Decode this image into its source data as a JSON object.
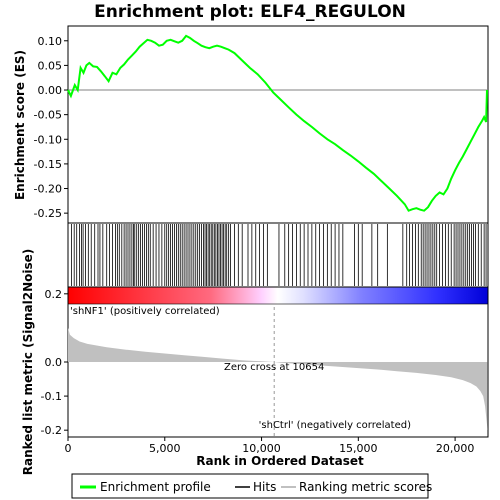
{
  "chart_data": {
    "type": "line",
    "title": "Enrichment plot: ELF4_REGULON",
    "top_panel": {
      "ylabel": "Enrichment score (ES)",
      "ylim": [
        -0.27,
        0.13
      ],
      "yticks": [
        "0.10",
        "0.05",
        "0.00",
        "-0.05",
        "-0.10",
        "-0.15",
        "-0.20",
        "-0.25"
      ],
      "ytick_values": [
        0.1,
        0.05,
        0.0,
        -0.05,
        -0.1,
        -0.15,
        -0.2,
        -0.25
      ],
      "series": [
        {
          "name": "Enrichment profile",
          "color": "#00ff00",
          "x": [
            0,
            150,
            350,
            500,
            650,
            800,
            950,
            1100,
            1300,
            1500,
            1700,
            1900,
            2100,
            2300,
            2500,
            2700,
            2900,
            3100,
            3300,
            3500,
            3700,
            3900,
            4100,
            4300,
            4500,
            4700,
            4900,
            5100,
            5300,
            5500,
            5700,
            5900,
            6100,
            6300,
            6500,
            6700,
            6900,
            7100,
            7300,
            7500,
            7700,
            7900,
            8100,
            8300,
            8600,
            9000,
            9400,
            9800,
            10200,
            10600,
            11000,
            11400,
            11800,
            12200,
            12600,
            13000,
            13400,
            13800,
            14200,
            14600,
            15000,
            15400,
            15800,
            16200,
            16600,
            17000,
            17400,
            17600,
            17800,
            18000,
            18200,
            18400,
            18600,
            18800,
            19000,
            19200,
            19400,
            19600,
            19800,
            20000,
            20200,
            20400,
            20600,
            20800,
            21000,
            21200,
            21400,
            21500,
            21600,
            21650
          ],
          "y": [
            0.0,
            -0.012,
            0.01,
            0.0,
            0.045,
            0.035,
            0.05,
            0.055,
            0.048,
            0.047,
            0.038,
            0.028,
            0.018,
            0.035,
            0.032,
            0.045,
            0.052,
            0.062,
            0.07,
            0.078,
            0.088,
            0.095,
            0.102,
            0.1,
            0.096,
            0.09,
            0.092,
            0.1,
            0.102,
            0.099,
            0.096,
            0.1,
            0.11,
            0.106,
            0.1,
            0.095,
            0.09,
            0.087,
            0.085,
            0.088,
            0.09,
            0.088,
            0.085,
            0.082,
            0.075,
            0.06,
            0.045,
            0.032,
            0.015,
            -0.005,
            -0.02,
            -0.035,
            -0.05,
            -0.063,
            -0.075,
            -0.088,
            -0.1,
            -0.11,
            -0.122,
            -0.133,
            -0.145,
            -0.158,
            -0.17,
            -0.185,
            -0.2,
            -0.215,
            -0.232,
            -0.245,
            -0.242,
            -0.24,
            -0.243,
            -0.245,
            -0.238,
            -0.225,
            -0.215,
            -0.208,
            -0.212,
            -0.2,
            -0.18,
            -0.163,
            -0.148,
            -0.135,
            -0.12,
            -0.105,
            -0.09,
            -0.075,
            -0.062,
            -0.055,
            -0.065,
            0.0
          ]
        }
      ]
    },
    "hits_panel": {
      "hit_ranks": [
        180,
        320,
        450,
        600,
        700,
        780,
        900,
        1050,
        1200,
        1380,
        1550,
        1650,
        1800,
        2000,
        2150,
        2300,
        2450,
        2550,
        2650,
        2780,
        2900,
        3000,
        3100,
        3200,
        3300,
        3380,
        3450,
        3550,
        3650,
        3750,
        3850,
        3950,
        4050,
        4150,
        4250,
        4400,
        4550,
        4700,
        4850,
        5000,
        5100,
        5200,
        5300,
        5400,
        5500,
        5600,
        5700,
        5800,
        5900,
        6000,
        6100,
        6200,
        6300,
        6400,
        6500,
        6600,
        6700,
        6800,
        6900,
        7000,
        7080,
        7160,
        7240,
        7320,
        7400,
        7480,
        7560,
        7640,
        7720,
        7800,
        7880,
        7960,
        8040,
        8120,
        8200,
        8300,
        8400,
        8600,
        8800,
        9000,
        9300,
        9500,
        9700,
        9900,
        10100,
        10300,
        10900,
        11200,
        11400,
        11600,
        11800,
        12000,
        12200,
        12400,
        12600,
        12800,
        13000,
        13200,
        13400,
        13600,
        13800,
        14000,
        14200,
        14800,
        15000,
        15200,
        15700,
        16000,
        16500,
        17300,
        17500,
        17650,
        17800,
        17950,
        18100,
        18250,
        18350,
        18450,
        18550,
        18650,
        18750,
        18850,
        18950,
        19050,
        19200,
        19350,
        19500,
        19650,
        19800,
        19950,
        20050,
        20150,
        20250,
        20350,
        20450,
        20550,
        20650,
        20750,
        20850,
        20950,
        21050,
        21200,
        21350,
        21500,
        21600
      ],
      "hit_color": "#000000"
    },
    "metric_panel": {
      "ylabel": "Ranked list metric (Signal2Noise)",
      "xlabel": "Rank in Ordered Dataset",
      "ylim": [
        -0.22,
        0.22
      ],
      "yticks": [
        "0.2",
        "0.0",
        "-0.1",
        "-0.2"
      ],
      "ytick_values": [
        0.2,
        0.0,
        -0.1,
        -0.2
      ],
      "xlim": [
        0,
        21700
      ],
      "xticks": [
        "0",
        "5,000",
        "10,000",
        "15,000",
        "20,000"
      ],
      "xtick_values": [
        0,
        5000,
        10000,
        15000,
        20000
      ],
      "metric_x": [
        0,
        100,
        300,
        600,
        1000,
        2000,
        3000,
        4000,
        5000,
        6000,
        7000,
        8000,
        9000,
        10000,
        10654,
        11000,
        12000,
        13000,
        14000,
        15000,
        16000,
        17000,
        18000,
        19000,
        19800,
        20400,
        20800,
        21100,
        21300,
        21450,
        21550,
        21620,
        21680
      ],
      "metric_y": [
        0.1,
        0.08,
        0.07,
        0.06,
        0.053,
        0.043,
        0.036,
        0.03,
        0.025,
        0.02,
        0.015,
        0.01,
        0.005,
        0.002,
        0.0,
        -0.002,
        -0.006,
        -0.01,
        -0.014,
        -0.018,
        -0.022,
        -0.027,
        -0.032,
        -0.038,
        -0.045,
        -0.053,
        -0.062,
        -0.072,
        -0.085,
        -0.1,
        -0.13,
        -0.17,
        -0.2
      ],
      "color": "#c0c0c0",
      "zero_cross_label": "Zero cross at 10654",
      "zero_cross_rank": 10654,
      "positive_label": "'shNF1' (positively correlated)",
      "negative_label": "'shCtrl' (negatively correlated)",
      "positive_color": "#ff0000",
      "negative_color": "#0000ff"
    },
    "legend": {
      "placement": "bottom",
      "entries": [
        {
          "label": "Enrichment profile",
          "color": "#00ff00"
        },
        {
          "label": "Hits",
          "color": "#000000"
        },
        {
          "label": "Ranking metric scores",
          "color": "#c0c0c0"
        }
      ]
    }
  }
}
